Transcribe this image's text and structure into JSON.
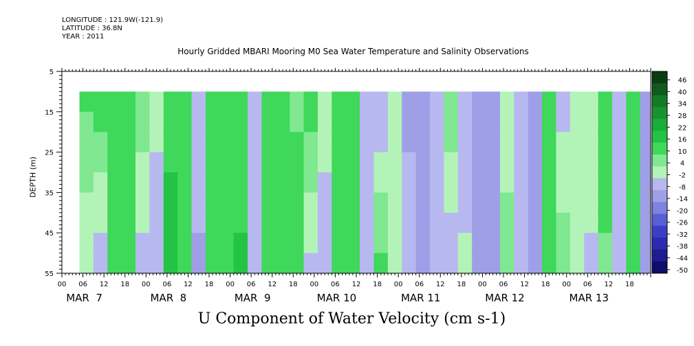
{
  "header": {
    "longitude": "LONGITUDE : 121.9W(-121.9)",
    "latitude": "LATITUDE : 36.8N",
    "year": "YEAR : 2011"
  },
  "chart_data": {
    "type": "heatmap",
    "title": "Hourly Gridded MBARI Mooring M0 Sea Water Temperature and Salinity Observations",
    "xlabel": "U Component of Water Velocity (cm s-1)",
    "ylabel": "DEPTH (m)",
    "y_ticks": [
      "5",
      "15",
      "25",
      "35",
      "45",
      "55"
    ],
    "y_range": [
      5,
      55
    ],
    "y_inverted": true,
    "data_depth_range": [
      10,
      55
    ],
    "x_hour_ticks": [
      "00",
      "06",
      "12",
      "18",
      "00",
      "06",
      "12",
      "18",
      "00",
      "06",
      "12",
      "18",
      "00",
      "06",
      "12",
      "18",
      "00",
      "06",
      "12",
      "18",
      "00",
      "06",
      "12",
      "18",
      "00",
      "06",
      "12",
      "18"
    ],
    "x_day_labels": [
      "MAR  7",
      "MAR  8",
      "MAR  9",
      "MAR 10",
      "MAR 11",
      "MAR 12",
      "MAR 13"
    ],
    "x_range_hours": [
      0,
      168
    ],
    "data_start_hour": 5,
    "colorbar": {
      "levels": [
        "46",
        "40",
        "34",
        "28",
        "22",
        "16",
        "10",
        "4",
        "-2",
        "-8",
        "-14",
        "-20",
        "-26",
        "-32",
        "-38",
        "-44",
        "-50"
      ],
      "colors": [
        "#0a3d12",
        "#0f5a1c",
        "#137a27",
        "#17932f",
        "#1aad38",
        "#23c443",
        "#3fd85a",
        "#7fe890",
        "#b3f3b8",
        "#b8b8f0",
        "#9f9fe8",
        "#7f82e0",
        "#5a5fd4",
        "#3c3fc6",
        "#2a2bb0",
        "#1c1d8f",
        "#0e0e6a"
      ]
    },
    "profile": {
      "hours": [
        5,
        9,
        13,
        17,
        21,
        25,
        29,
        33,
        37,
        41,
        45,
        49,
        53,
        57,
        61,
        65,
        69,
        73,
        77,
        81,
        85,
        89,
        93,
        97,
        101,
        105,
        109,
        113,
        117,
        121,
        125,
        129,
        133,
        137,
        141,
        145,
        149,
        153,
        157,
        161,
        165
      ],
      "surface_values": [
        6,
        10,
        4,
        8,
        2,
        -6,
        6,
        10,
        -8,
        8,
        10,
        4,
        -8,
        6,
        10,
        2,
        8,
        -4,
        10,
        8,
        -10,
        -14,
        -4,
        -16,
        -20,
        -12,
        2,
        -14,
        -16,
        -18,
        -8,
        -12,
        -20,
        10,
        -12,
        -6,
        -2,
        10,
        -14,
        10,
        -18
      ],
      "bottom_values": [
        -8,
        -14,
        10,
        6,
        -10,
        -12,
        16,
        10,
        -16,
        10,
        10,
        12,
        -14,
        4,
        10,
        10,
        -10,
        -12,
        8,
        10,
        -12,
        6,
        -8,
        -10,
        -14,
        -8,
        -12,
        -6,
        -14,
        -16,
        2,
        -10,
        -14,
        10,
        4,
        -8,
        -10,
        2,
        -8,
        6,
        -16
      ]
    }
  }
}
